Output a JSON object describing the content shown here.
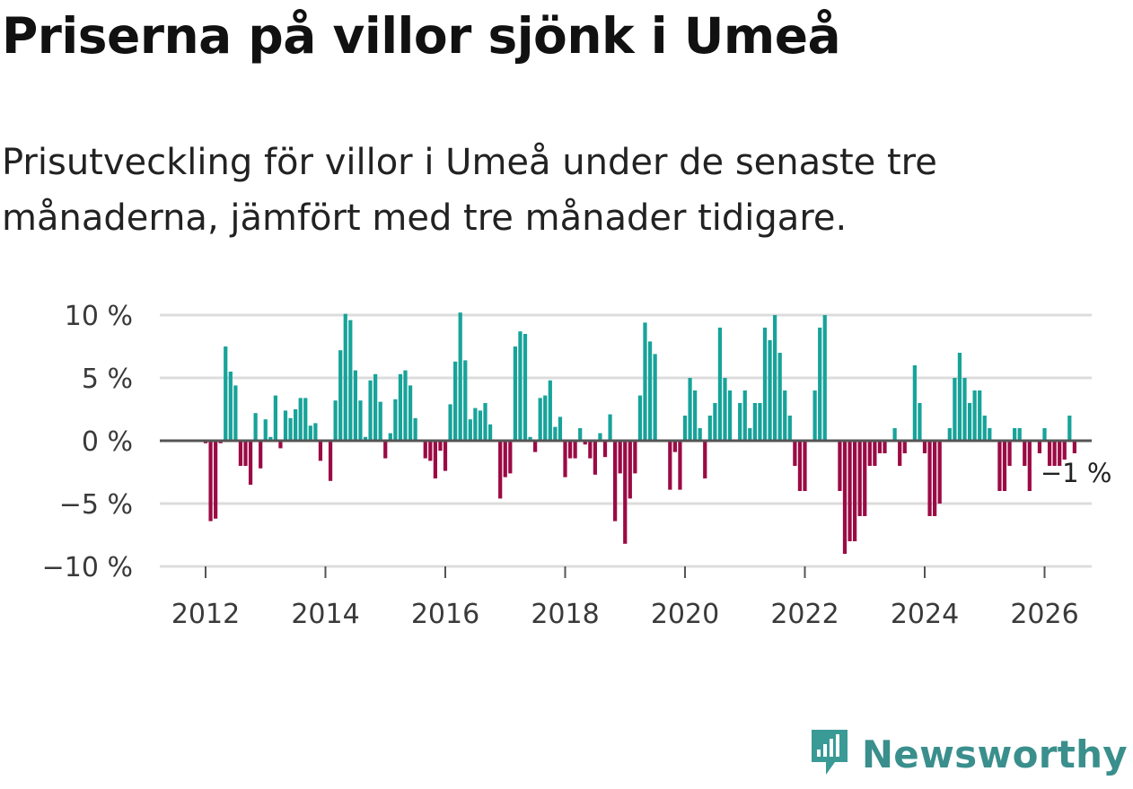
{
  "header": {
    "title": "Priserna på villor sjönk i Umeå",
    "subtitle": "Prisutveckling för villor i Umeå under de senaste tre månaderna, jämfört med tre månader tidigare."
  },
  "brand": {
    "name": "Newsworthy",
    "icon": "newsworthy-logo-icon",
    "color": "#3a9a96"
  },
  "colors": {
    "positive": "#17a39a",
    "negative": "#9b0a45",
    "grid": "#dcdcdc",
    "zero": "#555555"
  },
  "chart_data": {
    "type": "bar",
    "title": "Priserna på villor sjönk i Umeå",
    "xlabel": "",
    "ylabel": "",
    "ylim": [
      -10,
      10
    ],
    "yticks": [
      10,
      5,
      0,
      -5,
      -10
    ],
    "ytick_labels": [
      "10 %",
      "5 %",
      "0 %",
      "−5 %",
      "−10 %"
    ],
    "x_ticks": [
      2012,
      2014,
      2016,
      2018,
      2020,
      2022,
      2024,
      2026
    ],
    "x_tick_labels": [
      "2012",
      "2014",
      "2016",
      "2018",
      "2020",
      "2022",
      "2024",
      "2026"
    ],
    "start": "2012-01",
    "end_label": "−1 %",
    "series": [
      {
        "name": "Prisutveckling (%)",
        "values": [
          -0.2,
          -6.4,
          -6.2,
          -0.2,
          7.5,
          5.5,
          4.4,
          -2.0,
          -2.0,
          -3.5,
          2.2,
          -2.2,
          1.7,
          0.3,
          3.6,
          -0.6,
          2.4,
          1.8,
          2.5,
          3.4,
          3.4,
          1.2,
          1.4,
          -1.6,
          0.0,
          -3.2,
          3.2,
          7.2,
          10.1,
          9.6,
          5.6,
          3.2,
          0.3,
          4.8,
          5.3,
          3.1,
          -1.4,
          0.6,
          3.3,
          5.3,
          5.6,
          4.4,
          1.8,
          -0.1,
          -1.4,
          -1.6,
          -3.0,
          -0.8,
          -2.4,
          2.9,
          6.3,
          10.2,
          6.4,
          1.7,
          2.6,
          2.4,
          3.0,
          1.3,
          0.0,
          -4.6,
          -2.9,
          -2.6,
          7.5,
          8.7,
          8.5,
          0.3,
          -0.9,
          3.4,
          3.6,
          4.8,
          1.1,
          1.9,
          -2.9,
          -1.4,
          -1.4,
          1.0,
          -0.3,
          -1.4,
          -2.7,
          0.6,
          -1.3,
          2.1,
          -6.4,
          -2.6,
          -8.2,
          -4.6,
          -2.6,
          3.6,
          9.4,
          7.9,
          6.9,
          0.0,
          0.0,
          -3.9,
          -0.9,
          -3.9,
          2.0,
          5.0,
          4.0,
          1.0,
          -3.0,
          2.0,
          3.0,
          9.0,
          5.0,
          4.0,
          0.0,
          3.0,
          4.0,
          1.0,
          3.0,
          3.0,
          9.0,
          8.0,
          10.0,
          7.0,
          4.0,
          2.0,
          -2.0,
          -4.0,
          -4.0,
          0.0,
          4.0,
          9.0,
          10.0,
          0.0,
          0.0,
          -4.0,
          -9.0,
          -8.0,
          -8.0,
          -6.0,
          -6.0,
          -2.0,
          -2.0,
          -1.0,
          -1.0,
          0.0,
          1.0,
          -2.0,
          -1.0,
          0.0,
          6.0,
          3.0,
          -1.0,
          -6.0,
          -6.0,
          -5.0,
          0.0,
          1.0,
          5.0,
          7.0,
          5.0,
          3.0,
          4.0,
          4.0,
          2.0,
          1.0,
          0.0,
          -4.0,
          -4.0,
          -2.0,
          1.0,
          1.0,
          -2.0,
          -4.0,
          0.0,
          -1.0,
          1.0,
          -2.0,
          -2.0,
          -2.0,
          -1.5,
          2.0,
          -1.0
        ]
      }
    ]
  }
}
